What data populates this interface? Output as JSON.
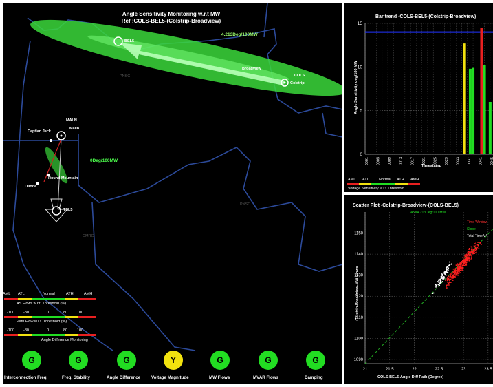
{
  "map": {
    "title_line1": "Angle Sensitivity Monitoring w.r.t MW",
    "title_line2": "Ref :COLS-BEL5-(Colstrip-Broadview)",
    "north_arrow_label": "4.213Deg/100MW",
    "south_arrow_label": "0Deg/100MW",
    "stations": {
      "bel5": "BEL5",
      "broadview": "Broadview",
      "cols": "COLS",
      "colstrip": "Colstrip",
      "maln": "MALN",
      "malin": "Malin",
      "captain_jack": "Captian Jack",
      "round_mountain": "Round Mountain",
      "olinda": "Olinda",
      "tsl5": "TSL5"
    },
    "regions": {
      "pnsc_north": "PNSC",
      "pnsc_mid": "PNSC",
      "cmrc": "CMRC"
    }
  },
  "thresholds": {
    "scale_labels": [
      "AML",
      "ATL",
      "Normal",
      "ATH",
      "AMH"
    ],
    "as_flows_caption": "AS Flows w.r.t. Threshold (%)",
    "path_flow_caption": "Path Flow w.r.t. Threshold (%)",
    "ticks": [
      "-100",
      "-80",
      "0",
      "80",
      "100"
    ],
    "angle_caption": "Angle Difference Monitoring"
  },
  "status_lights": [
    {
      "letter": "G",
      "label": "Interconnection Freq.",
      "color": "#22dd22"
    },
    {
      "letter": "G",
      "label": "Freq. Stability",
      "color": "#22dd22"
    },
    {
      "letter": "G",
      "label": "Angle Difference",
      "color": "#22dd22"
    },
    {
      "letter": "Y",
      "label": "Voltage Magnitude",
      "color": "#f2e20f"
    },
    {
      "letter": "G",
      "label": "MW Flows",
      "color": "#22dd22"
    },
    {
      "letter": "G",
      "label": "MVAR Flows",
      "color": "#22dd22"
    },
    {
      "letter": "G",
      "label": "Damping",
      "color": "#22dd22"
    }
  ],
  "bar_trend": {
    "title": "Bar trend -COLS-BEL5-(Colstrip-Broadview)",
    "ylabel": "Angle Sensitivity deg/100 MW",
    "footer_scale": [
      "AML",
      "ATL",
      "Normal",
      "ATH",
      "AMH"
    ],
    "footer_caption": "Voltage Sensitivity w.r.t Threshold",
    "timestamp_label": "Timestamp"
  },
  "scatter": {
    "title": "Scatter Plot -Colstrip-Broadview-(COLS-BEL5)",
    "annotation": "AS=4.213Deg/100 MW",
    "legend": [
      "Time Window",
      "Slope",
      "Total Time Wi"
    ],
    "xlabel": "COLS-BEL5-Angle Diff Path (Degree)",
    "ylabel": "Colstrip-Broadview-MW Flows"
  },
  "colors": {
    "green": "#22dd22",
    "yellow": "#f2e20f",
    "red": "#e82020",
    "blue_line": "#2233ff",
    "map_outline": "#2c4a9a"
  },
  "chart_data": [
    {
      "type": "bar",
      "title": "Bar trend -COLS-BEL5-(Colstrip-Broadview)",
      "ylabel": "Angle Sensitivity deg/100 MW",
      "xlabel": "Timestamp",
      "ylim": [
        0,
        15
      ],
      "yticks": [
        0,
        5,
        10,
        15
      ],
      "xticks": [
        "0001",
        "0005",
        "0009",
        "0013",
        "0017",
        "0021",
        "0025",
        "0029",
        "0033",
        "0037",
        "0041",
        "0045"
      ],
      "threshold_line": 14,
      "bars": [
        {
          "x": 35,
          "value": 12.7,
          "color": "#f2e20f"
        },
        {
          "x": 37,
          "value": 9.8,
          "color": "#22dd22"
        },
        {
          "x": 38,
          "value": 9.9,
          "color": "#22dd22"
        },
        {
          "x": 41,
          "value": 14.5,
          "color": "#e82020"
        },
        {
          "x": 42,
          "value": 10.2,
          "color": "#22dd22"
        },
        {
          "x": 44,
          "value": 6.0,
          "color": "#22dd22"
        }
      ],
      "grid": true
    },
    {
      "type": "scatter",
      "title": "Scatter Plot -Colstrip-Broadview-(COLS-BEL5)",
      "xlabel": "COLS-BEL5-Angle Diff Path (Degree)",
      "ylabel": "Colstrip-Broadview-MW Flows",
      "xlim": [
        21,
        23.6
      ],
      "ylim": [
        1088,
        1160
      ],
      "xticks": [
        21,
        21.5,
        22,
        22.5,
        23,
        23.5
      ],
      "yticks": [
        1090,
        1100,
        1110,
        1120,
        1130,
        1140,
        1150
      ],
      "slope_line": [
        [
          21,
          1088
        ],
        [
          23.6,
          1152
        ]
      ],
      "clusters": [
        {
          "name": "Time Window",
          "color": "#ff2020",
          "center": [
            23.0,
            1136
          ],
          "spread": [
            0.35,
            8
          ],
          "count": 320
        },
        {
          "name": "Total Time Wi",
          "color": "#ffffff",
          "center": [
            22.6,
            1130
          ],
          "spread": [
            0.2,
            6
          ],
          "count": 90
        }
      ],
      "grid": true
    }
  ]
}
